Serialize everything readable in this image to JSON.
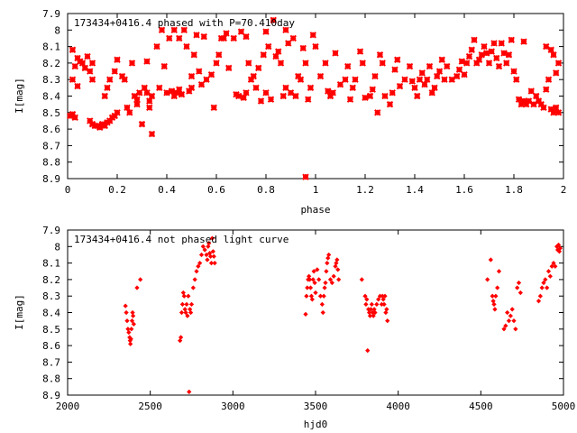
{
  "chart_data": [
    {
      "type": "scatter",
      "title": "173434+0416.4 phased with P=70.410day",
      "xlabel": "phase",
      "ylabel": "I[mag]",
      "xlim": [
        0,
        2
      ],
      "ylim": [
        8.9,
        7.9
      ],
      "y_inverted": true,
      "x_ticks": [
        "0",
        "0.2",
        "0.4",
        "0.6",
        "0.8",
        "1",
        "1.2",
        "1.4",
        "1.6",
        "1.8",
        "2"
      ],
      "y_ticks": [
        "7.9",
        "8",
        "8.1",
        "8.2",
        "8.3",
        "8.4",
        "8.5",
        "8.6",
        "8.7",
        "8.8",
        "8.9"
      ],
      "marker": "star",
      "color": "#ff0000",
      "points": [
        [
          0.02,
          8.12
        ],
        [
          0.03,
          8.22
        ],
        [
          0.02,
          8.3
        ],
        [
          0.01,
          8.52
        ],
        [
          0.02,
          8.51
        ],
        [
          0.03,
          8.53
        ],
        [
          0.04,
          8.17
        ],
        [
          0.05,
          8.19
        ],
        [
          0.04,
          8.34
        ],
        [
          0.06,
          8.2
        ],
        [
          0.07,
          8.23
        ],
        [
          0.08,
          8.16
        ],
        [
          0.09,
          8.25
        ],
        [
          0.1,
          8.3
        ],
        [
          0.1,
          8.2
        ],
        [
          0.09,
          8.55
        ],
        [
          0.1,
          8.57
        ],
        [
          0.11,
          8.58
        ],
        [
          0.12,
          8.58
        ],
        [
          0.13,
          8.59
        ],
        [
          0.14,
          8.57
        ],
        [
          0.15,
          8.58
        ],
        [
          0.16,
          8.56
        ],
        [
          0.17,
          8.55
        ],
        [
          0.18,
          8.53
        ],
        [
          0.19,
          8.52
        ],
        [
          0.15,
          8.4
        ],
        [
          0.16,
          8.35
        ],
        [
          0.17,
          8.3
        ],
        [
          0.19,
          8.25
        ],
        [
          0.2,
          8.18
        ],
        [
          0.2,
          8.5
        ],
        [
          0.22,
          8.28
        ],
        [
          0.23,
          8.3
        ],
        [
          0.24,
          8.47
        ],
        [
          0.25,
          8.5
        ],
        [
          0.26,
          8.2
        ],
        [
          0.27,
          8.4
        ],
        [
          0.28,
          8.42
        ],
        [
          0.28,
          8.45
        ],
        [
          0.29,
          8.38
        ],
        [
          0.3,
          8.57
        ],
        [
          0.31,
          8.35
        ],
        [
          0.32,
          8.38
        ],
        [
          0.32,
          8.19
        ],
        [
          0.33,
          8.43
        ],
        [
          0.33,
          8.47
        ],
        [
          0.34,
          8.63
        ],
        [
          0.34,
          8.4
        ],
        [
          0.36,
          8.1
        ],
        [
          0.37,
          8.35
        ],
        [
          0.38,
          8.0
        ],
        [
          0.39,
          8.22
        ],
        [
          0.4,
          8.38
        ],
        [
          0.41,
          8.05
        ],
        [
          0.42,
          8.37
        ],
        [
          0.43,
          8.0
        ],
        [
          0.43,
          8.4
        ],
        [
          0.44,
          8.38
        ],
        [
          0.45,
          8.36
        ],
        [
          0.45,
          8.05
        ],
        [
          0.46,
          8.39
        ],
        [
          0.47,
          8.0
        ],
        [
          0.48,
          8.1
        ],
        [
          0.49,
          8.37
        ],
        [
          0.5,
          8.35
        ],
        [
          0.5,
          8.28
        ],
        [
          0.51,
          8.15
        ],
        [
          0.52,
          8.03
        ],
        [
          0.53,
          8.25
        ],
        [
          0.54,
          8.33
        ],
        [
          0.55,
          8.04
        ],
        [
          0.56,
          8.3
        ],
        [
          0.58,
          8.27
        ],
        [
          0.59,
          8.47
        ],
        [
          0.6,
          8.2
        ],
        [
          0.61,
          8.15
        ],
        [
          0.62,
          8.05
        ],
        [
          0.63,
          8.05
        ],
        [
          0.64,
          8.02
        ],
        [
          0.65,
          8.23
        ],
        [
          0.67,
          8.05
        ],
        [
          0.68,
          8.39
        ],
        [
          0.69,
          8.4
        ],
        [
          0.7,
          8.01
        ],
        [
          0.71,
          8.41
        ],
        [
          0.72,
          8.04
        ],
        [
          0.72,
          8.38
        ],
        [
          0.73,
          8.2
        ],
        [
          0.74,
          8.3
        ],
        [
          0.75,
          8.28
        ],
        [
          0.76,
          8.35
        ],
        [
          0.77,
          8.23
        ],
        [
          0.78,
          8.43
        ],
        [
          0.79,
          8.15
        ],
        [
          0.8,
          8.01
        ],
        [
          0.8,
          8.38
        ],
        [
          0.81,
          8.1
        ],
        [
          0.82,
          8.42
        ],
        [
          0.83,
          7.94
        ],
        [
          0.84,
          8.16
        ],
        [
          0.85,
          8.13
        ],
        [
          0.86,
          8.2
        ],
        [
          0.87,
          8.4
        ],
        [
          0.88,
          8.0
        ],
        [
          0.88,
          8.35
        ],
        [
          0.89,
          8.08
        ],
        [
          0.9,
          8.38
        ],
        [
          0.91,
          8.05
        ],
        [
          0.92,
          8.4
        ],
        [
          0.93,
          8.28
        ],
        [
          0.94,
          8.3
        ],
        [
          0.95,
          8.11
        ],
        [
          0.96,
          8.2
        ],
        [
          0.96,
          8.89
        ],
        [
          0.97,
          8.42
        ],
        [
          0.98,
          8.35
        ],
        [
          0.99,
          8.03
        ],
        [
          1.0,
          8.1
        ],
        [
          1.02,
          8.28
        ],
        [
          1.04,
          8.2
        ],
        [
          1.05,
          8.37
        ],
        [
          1.06,
          8.4
        ],
        [
          1.07,
          8.38
        ],
        [
          1.08,
          8.14
        ],
        [
          1.1,
          8.33
        ],
        [
          1.12,
          8.3
        ],
        [
          1.13,
          8.22
        ],
        [
          1.14,
          8.42
        ],
        [
          1.15,
          8.35
        ],
        [
          1.16,
          8.3
        ],
        [
          1.18,
          8.13
        ],
        [
          1.19,
          8.2
        ],
        [
          1.2,
          8.41
        ],
        [
          1.22,
          8.4
        ],
        [
          1.23,
          8.36
        ],
        [
          1.24,
          8.28
        ],
        [
          1.25,
          8.5
        ],
        [
          1.26,
          8.15
        ],
        [
          1.27,
          8.2
        ],
        [
          1.28,
          8.4
        ],
        [
          1.3,
          8.45
        ],
        [
          1.31,
          8.38
        ],
        [
          1.32,
          8.24
        ],
        [
          1.33,
          8.18
        ],
        [
          1.34,
          8.34
        ],
        [
          1.36,
          8.3
        ],
        [
          1.38,
          8.22
        ],
        [
          1.39,
          8.31
        ],
        [
          1.4,
          8.35
        ],
        [
          1.41,
          8.4
        ],
        [
          1.42,
          8.3
        ],
        [
          1.43,
          8.26
        ],
        [
          1.44,
          8.33
        ],
        [
          1.45,
          8.3
        ],
        [
          1.46,
          8.22
        ],
        [
          1.47,
          8.38
        ],
        [
          1.48,
          8.35
        ],
        [
          1.49,
          8.28
        ],
        [
          1.5,
          8.25
        ],
        [
          1.51,
          8.18
        ],
        [
          1.52,
          8.3
        ],
        [
          1.53,
          8.22
        ],
        [
          1.55,
          8.3
        ],
        [
          1.57,
          8.28
        ],
        [
          1.58,
          8.24
        ],
        [
          1.59,
          8.19
        ],
        [
          1.6,
          8.27
        ],
        [
          1.61,
          8.2
        ],
        [
          1.62,
          8.16
        ],
        [
          1.63,
          8.12
        ],
        [
          1.64,
          8.06
        ],
        [
          1.65,
          8.2
        ],
        [
          1.66,
          8.18
        ],
        [
          1.67,
          8.15
        ],
        [
          1.68,
          8.1
        ],
        [
          1.69,
          8.14
        ],
        [
          1.7,
          8.2
        ],
        [
          1.71,
          8.13
        ],
        [
          1.72,
          8.08
        ],
        [
          1.73,
          8.17
        ],
        [
          1.74,
          8.22
        ],
        [
          1.75,
          8.08
        ],
        [
          1.76,
          8.14
        ],
        [
          1.77,
          8.2
        ],
        [
          1.78,
          8.15
        ],
        [
          1.79,
          8.06
        ],
        [
          1.8,
          8.25
        ],
        [
          1.81,
          8.3
        ],
        [
          1.82,
          8.42
        ],
        [
          1.83,
          8.45
        ],
        [
          1.84,
          8.43
        ],
        [
          1.84,
          8.07
        ],
        [
          1.85,
          8.45
        ],
        [
          1.86,
          8.43
        ],
        [
          1.87,
          8.37
        ],
        [
          1.88,
          8.45
        ],
        [
          1.89,
          8.4
        ],
        [
          1.9,
          8.43
        ],
        [
          1.91,
          8.45
        ],
        [
          1.92,
          8.47
        ],
        [
          1.93,
          8.36
        ],
        [
          1.94,
          8.3
        ],
        [
          1.95,
          8.48
        ],
        [
          1.96,
          8.5
        ],
        [
          1.97,
          8.47
        ],
        [
          1.98,
          8.5
        ],
        [
          1.93,
          8.1
        ],
        [
          1.95,
          8.12
        ],
        [
          1.96,
          8.15
        ],
        [
          1.97,
          8.26
        ],
        [
          1.98,
          8.2
        ]
      ]
    },
    {
      "type": "scatter",
      "title": "173434+0416.4 not phased light curve",
      "xlabel": "hjd0",
      "ylabel": "I[mag]",
      "xlim": [
        2000,
        5000
      ],
      "ylim": [
        8.9,
        7.9
      ],
      "y_inverted": true,
      "x_ticks": [
        "2000",
        "2500",
        "3000",
        "3500",
        "4000",
        "4500",
        "5000"
      ],
      "y_ticks": [
        "7.9",
        "8",
        "8.1",
        "8.2",
        "8.3",
        "8.4",
        "8.5",
        "8.6",
        "8.7",
        "8.8",
        "8.9"
      ],
      "marker": "diamond",
      "color": "#ff0000",
      "points": [
        [
          2350,
          8.36
        ],
        [
          2355,
          8.4
        ],
        [
          2360,
          8.45
        ],
        [
          2365,
          8.5
        ],
        [
          2370,
          8.52
        ],
        [
          2375,
          8.55
        ],
        [
          2378,
          8.57
        ],
        [
          2380,
          8.59
        ],
        [
          2383,
          8.56
        ],
        [
          2386,
          8.5
        ],
        [
          2390,
          8.45
        ],
        [
          2393,
          8.4
        ],
        [
          2396,
          8.42
        ],
        [
          2400,
          8.47
        ],
        [
          2420,
          8.25
        ],
        [
          2440,
          8.2
        ],
        [
          2680,
          8.57
        ],
        [
          2685,
          8.55
        ],
        [
          2690,
          8.4
        ],
        [
          2695,
          8.35
        ],
        [
          2700,
          8.28
        ],
        [
          2705,
          8.3
        ],
        [
          2710,
          8.38
        ],
        [
          2715,
          8.4
        ],
        [
          2720,
          8.35
        ],
        [
          2725,
          8.42
        ],
        [
          2730,
          8.3
        ],
        [
          2735,
          8.88
        ],
        [
          2740,
          8.38
        ],
        [
          2745,
          8.4
        ],
        [
          2750,
          8.35
        ],
        [
          2760,
          8.25
        ],
        [
          2770,
          8.2
        ],
        [
          2780,
          8.15
        ],
        [
          2790,
          8.12
        ],
        [
          2800,
          8.1
        ],
        [
          2810,
          8.05
        ],
        [
          2820,
          8.0
        ],
        [
          2830,
          8.02
        ],
        [
          2840,
          8.05
        ],
        [
          2845,
          8.08
        ],
        [
          2850,
          8.0
        ],
        [
          2855,
          7.98
        ],
        [
          2860,
          8.04
        ],
        [
          2865,
          8.06
        ],
        [
          2870,
          8.1
        ],
        [
          2875,
          7.95
        ],
        [
          2880,
          8.03
        ],
        [
          2885,
          8.06
        ],
        [
          2890,
          8.1
        ],
        [
          3440,
          8.41
        ],
        [
          3445,
          8.3
        ],
        [
          3450,
          8.25
        ],
        [
          3455,
          8.2
        ],
        [
          3460,
          8.18
        ],
        [
          3465,
          8.2
        ],
        [
          3470,
          8.25
        ],
        [
          3475,
          8.3
        ],
        [
          3480,
          8.32
        ],
        [
          3485,
          8.2
        ],
        [
          3490,
          8.15
        ],
        [
          3495,
          8.22
        ],
        [
          3500,
          8.28
        ],
        [
          3510,
          8.14
        ],
        [
          3520,
          8.2
        ],
        [
          3530,
          8.3
        ],
        [
          3540,
          8.35
        ],
        [
          3545,
          8.4
        ],
        [
          3550,
          8.3
        ],
        [
          3555,
          8.25
        ],
        [
          3560,
          8.22
        ],
        [
          3565,
          8.15
        ],
        [
          3570,
          8.1
        ],
        [
          3575,
          8.07
        ],
        [
          3580,
          8.05
        ],
        [
          3590,
          8.2
        ],
        [
          3600,
          8.22
        ],
        [
          3610,
          8.18
        ],
        [
          3620,
          8.12
        ],
        [
          3625,
          8.1
        ],
        [
          3630,
          8.08
        ],
        [
          3635,
          8.14
        ],
        [
          3640,
          8.2
        ],
        [
          3780,
          8.2
        ],
        [
          3800,
          8.3
        ],
        [
          3805,
          8.35
        ],
        [
          3810,
          8.32
        ],
        [
          3815,
          8.63
        ],
        [
          3820,
          8.38
        ],
        [
          3825,
          8.4
        ],
        [
          3830,
          8.42
        ],
        [
          3835,
          8.38
        ],
        [
          3840,
          8.35
        ],
        [
          3845,
          8.4
        ],
        [
          3850,
          8.42
        ],
        [
          3855,
          8.38
        ],
        [
          3860,
          8.4
        ],
        [
          3870,
          8.35
        ],
        [
          3880,
          8.32
        ],
        [
          3890,
          8.3
        ],
        [
          3900,
          8.35
        ],
        [
          3905,
          8.3
        ],
        [
          3910,
          8.32
        ],
        [
          3915,
          8.35
        ],
        [
          3920,
          8.3
        ],
        [
          3925,
          8.4
        ],
        [
          3930,
          8.38
        ],
        [
          3935,
          8.45
        ],
        [
          4540,
          8.2
        ],
        [
          4560,
          8.08
        ],
        [
          4570,
          8.3
        ],
        [
          4575,
          8.33
        ],
        [
          4580,
          8.35
        ],
        [
          4585,
          8.38
        ],
        [
          4590,
          8.3
        ],
        [
          4600,
          8.25
        ],
        [
          4610,
          8.15
        ],
        [
          4640,
          8.5
        ],
        [
          4650,
          8.48
        ],
        [
          4660,
          8.4
        ],
        [
          4670,
          8.45
        ],
        [
          4680,
          8.42
        ],
        [
          4690,
          8.38
        ],
        [
          4700,
          8.45
        ],
        [
          4710,
          8.5
        ],
        [
          4720,
          8.25
        ],
        [
          4730,
          8.22
        ],
        [
          4740,
          8.28
        ],
        [
          4850,
          8.33
        ],
        [
          4860,
          8.3
        ],
        [
          4870,
          8.25
        ],
        [
          4880,
          8.22
        ],
        [
          4890,
          8.2
        ],
        [
          4900,
          8.25
        ],
        [
          4910,
          8.15
        ],
        [
          4920,
          8.18
        ],
        [
          4930,
          8.12
        ],
        [
          4940,
          8.1
        ],
        [
          4950,
          8.12
        ],
        [
          4960,
          8.0
        ],
        [
          4965,
          8.02
        ],
        [
          4970,
          7.99
        ],
        [
          4975,
          8.03
        ],
        [
          4980,
          8.01
        ]
      ]
    }
  ]
}
